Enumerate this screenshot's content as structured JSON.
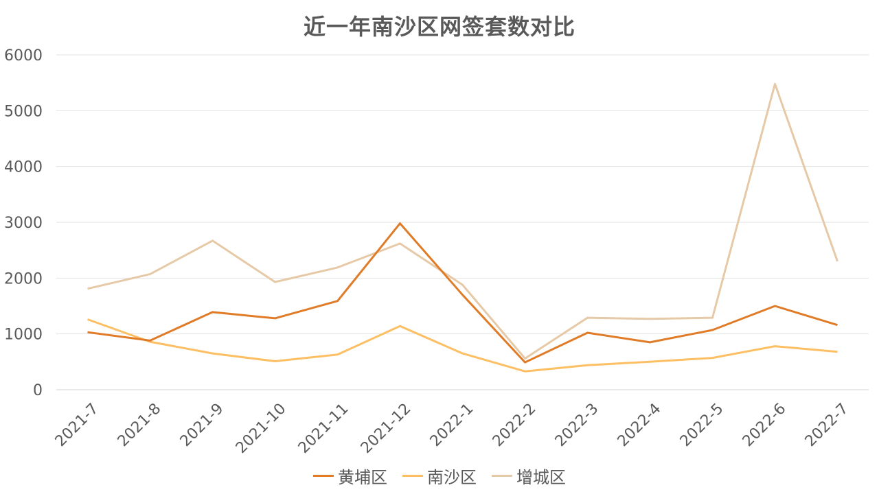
{
  "chart_data": {
    "type": "line",
    "title": "近一年南沙区网签套数对比",
    "categories": [
      "2021-7",
      "2021-8",
      "2021-9",
      "2021-10",
      "2021-11",
      "2021-12",
      "2022-1",
      "2022-2",
      "2022-3",
      "2022-4",
      "2022-5",
      "2022-6",
      "2022-7"
    ],
    "ylim": [
      0,
      6000
    ],
    "yticks": [
      0,
      1000,
      2000,
      3000,
      4000,
      5000,
      6000
    ],
    "grid": true,
    "legend_position": "bottom",
    "series": [
      {
        "name": "黄埔区",
        "color": "#e07b28",
        "values": [
          1030,
          880,
          1390,
          1280,
          1590,
          2980,
          1700,
          490,
          1020,
          850,
          1070,
          1500,
          1160
        ]
      },
      {
        "name": "南沙区",
        "color": "#fcbf64",
        "values": [
          1260,
          860,
          650,
          510,
          630,
          1140,
          650,
          330,
          440,
          500,
          570,
          780,
          680
        ]
      },
      {
        "name": "增城区",
        "color": "#e6c9a6",
        "values": [
          1810,
          2070,
          2670,
          1930,
          2190,
          2620,
          1880,
          560,
          1290,
          1270,
          1290,
          5480,
          2300
        ]
      }
    ]
  }
}
